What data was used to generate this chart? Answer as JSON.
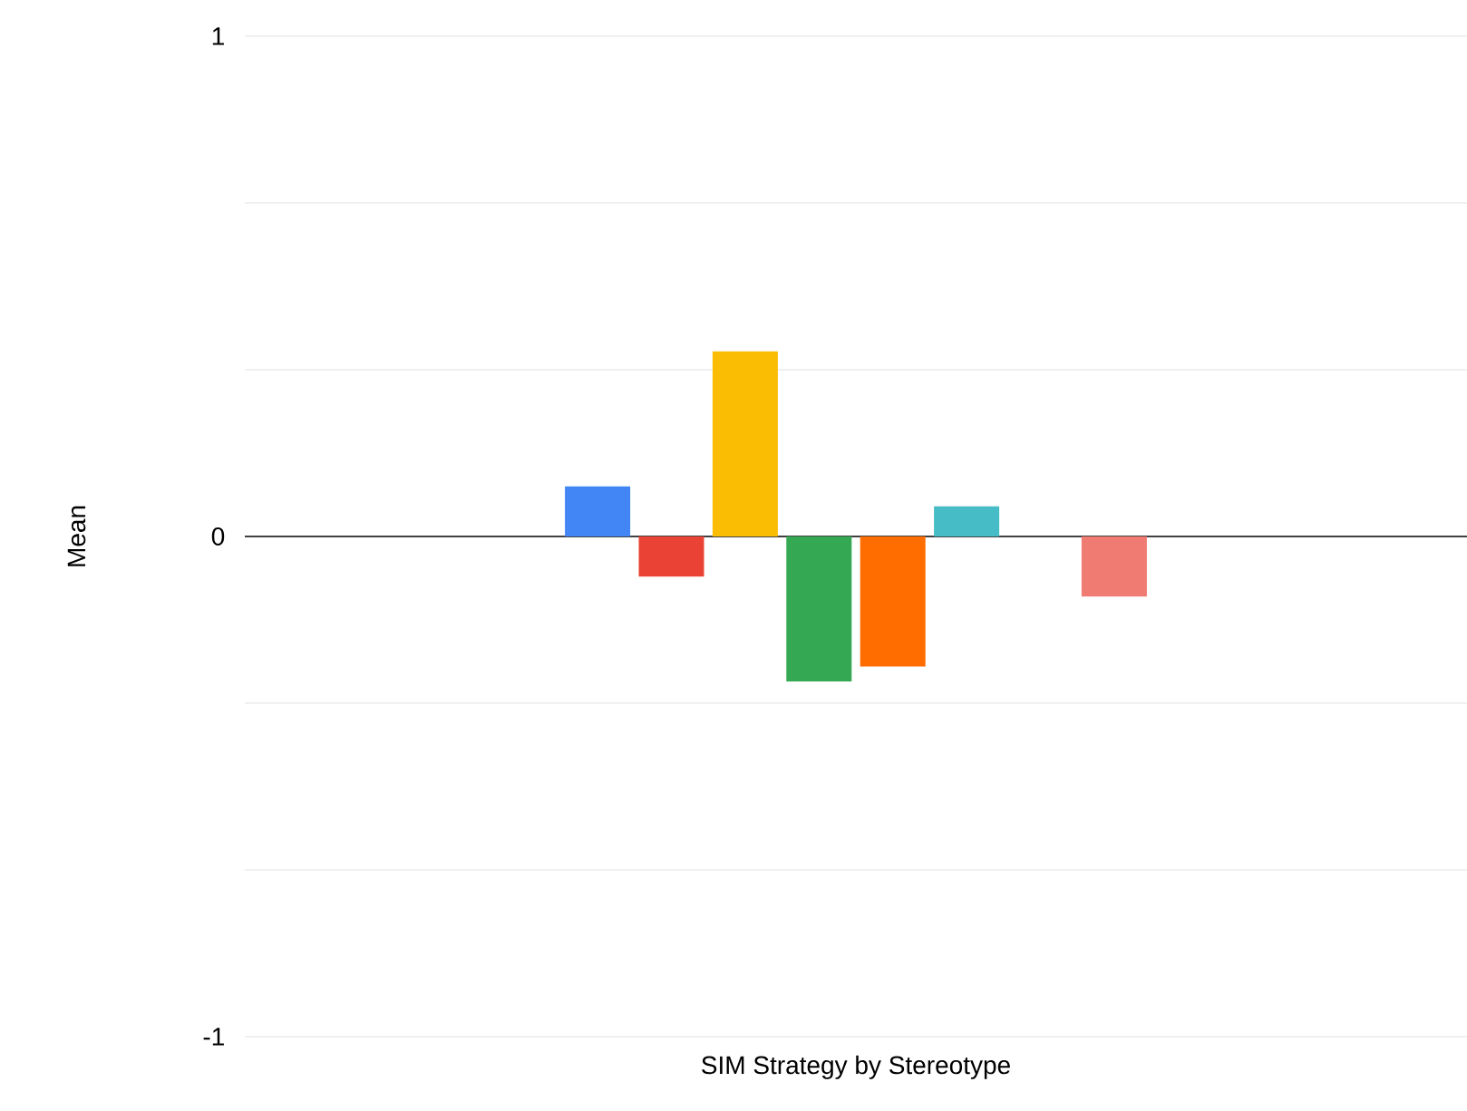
{
  "chart_data": {
    "type": "bar",
    "xlabel": "SIM Strategy by Stereotype",
    "ylabel": "Mean",
    "categories": [
      null
    ],
    "series": [
      {
        "color": "#4285f4",
        "values": [
          0.1
        ]
      },
      {
        "color": "#ea4335",
        "values": [
          -0.08
        ]
      },
      {
        "color": "#fbbc04",
        "values": [
          0.37
        ]
      },
      {
        "color": "#34a853",
        "values": [
          -0.29
        ]
      },
      {
        "color": "#ff6d01",
        "values": [
          -0.26
        ]
      },
      {
        "color": "#46bdc6",
        "values": [
          0.06
        ]
      },
      {
        "values": [
          null
        ]
      },
      {
        "color": "#f07b72",
        "values": [
          -0.12
        ]
      }
    ],
    "ylim": [
      -1,
      1
    ],
    "yticks": [
      -1,
      {
        "value": -0.6667,
        "label": null
      },
      {
        "value": -0.3333,
        "label": null
      },
      0,
      {
        "value": 0.3333,
        "label": null
      },
      {
        "value": 0.6667,
        "label": null
      },
      1
    ],
    "grid": "y"
  }
}
